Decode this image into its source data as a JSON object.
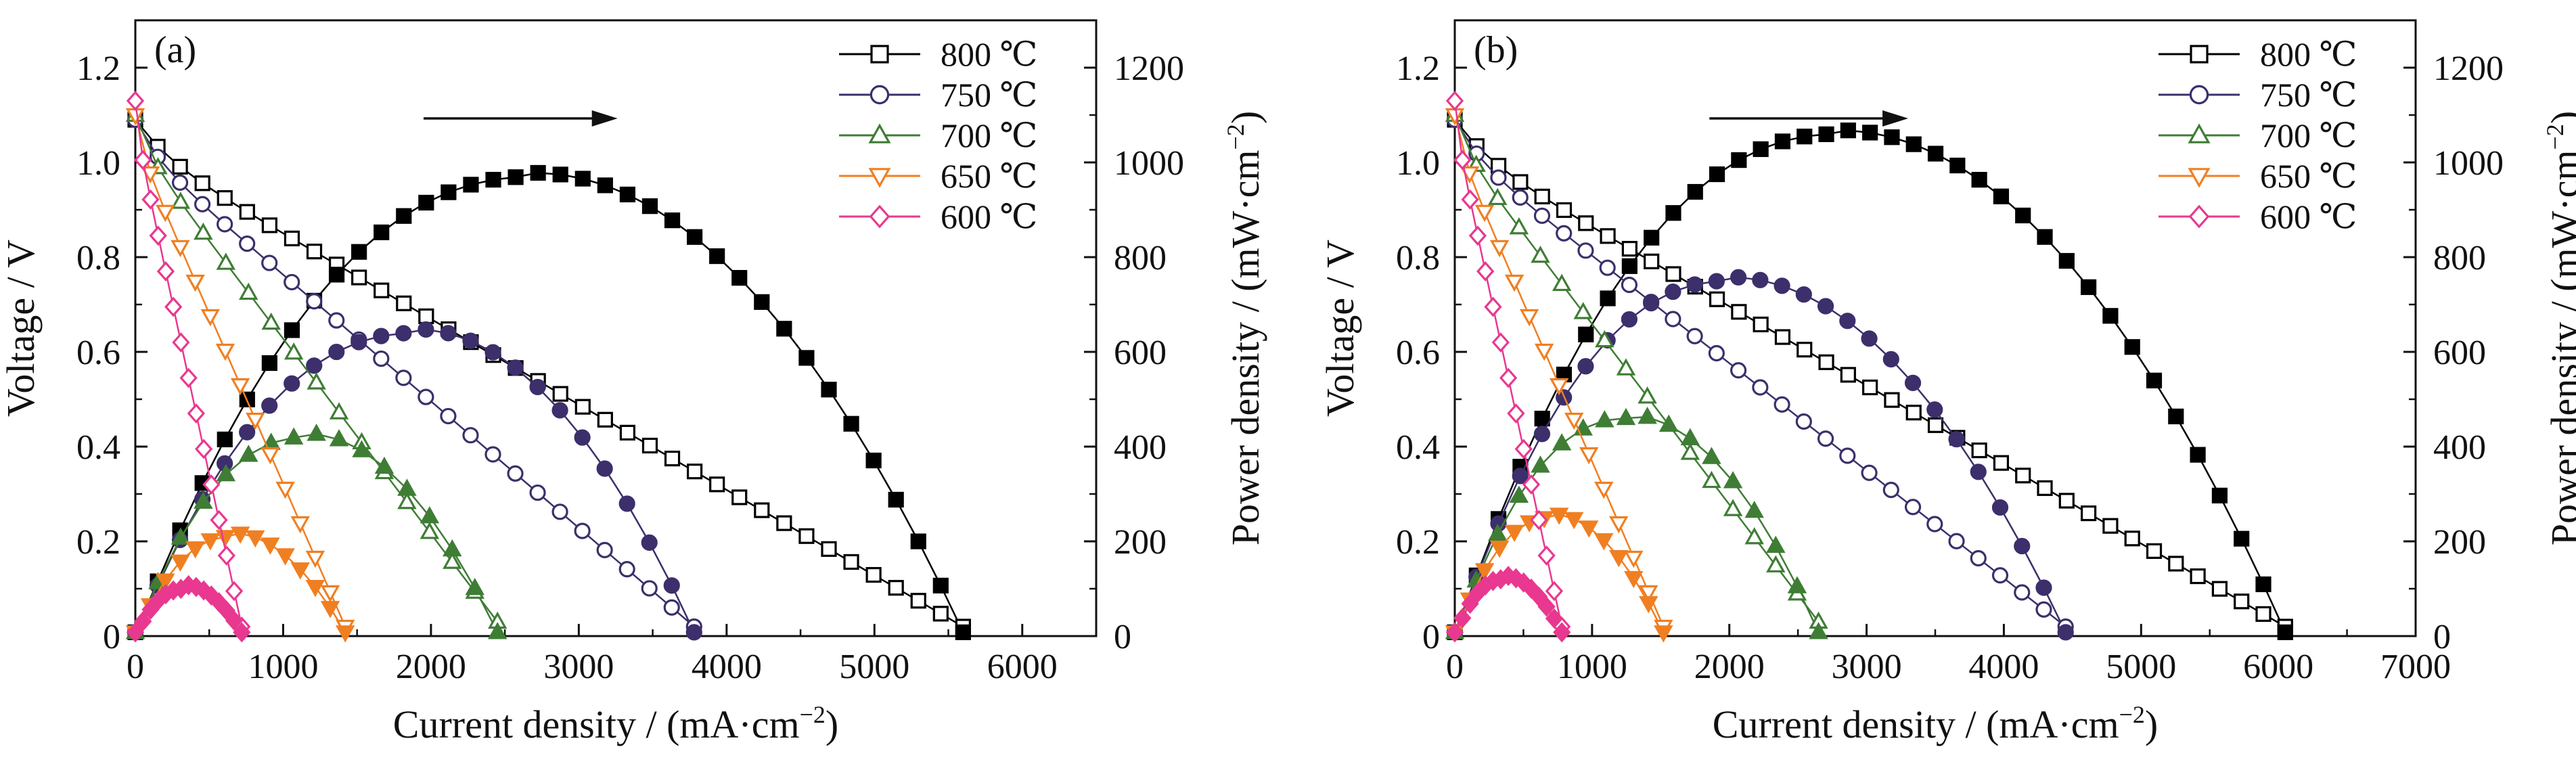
{
  "charts": [
    {
      "tag": "(a)",
      "xlabel": "Current density / (mA·cm",
      "ylabel_left": "Voltage / V",
      "ylabel_right": "Power density / (mW·cm",
      "unit_exponent": "−2",
      "unit_close": ")",
      "xticks": [
        "0",
        "1000",
        "2000",
        "3000",
        "4000",
        "5000",
        "6000"
      ],
      "yticks_left": [
        "0",
        "0.2",
        "0.4",
        "0.6",
        "0.8",
        "1.0",
        "1.2"
      ],
      "yticks_right": [
        "0",
        "200",
        "400",
        "600",
        "800",
        "1000",
        "1200"
      ],
      "legend": [
        "800 ℃",
        "750 ℃",
        "700 ℃",
        "650 ℃",
        "600 ℃"
      ],
      "annotation": "arrow pointing right"
    },
    {
      "tag": "(b)",
      "xlabel": "Current density / (mA·cm",
      "ylabel_left": "Voltage / V",
      "ylabel_right": "Power density / (mW·cm",
      "unit_exponent": "−2",
      "unit_close": ")",
      "xticks": [
        "0",
        "1000",
        "2000",
        "3000",
        "4000",
        "5000",
        "6000",
        "7000"
      ],
      "yticks_left": [
        "0",
        "0.2",
        "0.4",
        "0.6",
        "0.8",
        "1.0",
        "1.2"
      ],
      "yticks_right": [
        "0",
        "200",
        "400",
        "600",
        "800",
        "1000",
        "1200"
      ],
      "legend": [
        "800 ℃",
        "750 ℃",
        "700 ℃",
        "650 ℃",
        "600 ℃"
      ],
      "annotation": "arrow pointing right"
    }
  ],
  "chart_data": [
    {
      "type": "line",
      "xlim": [
        0,
        6500
      ],
      "ylim_left": [
        0,
        1.3
      ],
      "ylim_right": [
        0,
        1300
      ],
      "series": [
        {
          "name": "800 ℃",
          "color": "#000000",
          "marker": "square",
          "ocv": 1.09,
          "voc_end": [
            5600,
            0.02
          ],
          "peak_power": [
            2700,
            970
          ]
        },
        {
          "name": "750 ℃",
          "color": "#3c2f6b",
          "marker": "circle",
          "ocv": 1.09,
          "voc_end": [
            3780,
            0.02
          ],
          "peak_power": [
            1900,
            640
          ]
        },
        {
          "name": "700 ℃",
          "color": "#3f7d35",
          "marker": "triangle-up",
          "ocv": 1.1,
          "voc_end": [
            2450,
            0.03
          ],
          "peak_power": [
            1150,
            420
          ]
        },
        {
          "name": "650 ℃",
          "color": "#f07f22",
          "marker": "triangle-down",
          "ocv": 1.1,
          "voc_end": [
            1420,
            0.02
          ],
          "peak_power": [
            650,
            210
          ]
        },
        {
          "name": "600 ℃",
          "color": "#e8388f",
          "marker": "diamond",
          "ocv": 1.13,
          "voc_end": [
            720,
            0.02
          ],
          "peak_power": [
            330,
            100
          ]
        }
      ]
    },
    {
      "type": "line",
      "xlim": [
        0,
        7000
      ],
      "ylim_left": [
        0,
        1.3
      ],
      "ylim_right": [
        0,
        1300
      ],
      "series": [
        {
          "name": "800 ℃",
          "color": "#000000",
          "marker": "square",
          "ocv": 1.09,
          "voc_end": [
            6050,
            0.02
          ],
          "peak_power": [
            2800,
            1060
          ]
        },
        {
          "name": "750 ℃",
          "color": "#3c2f6b",
          "marker": "circle",
          "ocv": 1.09,
          "voc_end": [
            4450,
            0.02
          ],
          "peak_power": [
            2000,
            750
          ]
        },
        {
          "name": "700 ℃",
          "color": "#3f7d35",
          "marker": "triangle-up",
          "ocv": 1.1,
          "voc_end": [
            2650,
            0.03
          ],
          "peak_power": [
            1250,
            460
          ]
        },
        {
          "name": "650 ℃",
          "color": "#f07f22",
          "marker": "triangle-down",
          "ocv": 1.1,
          "voc_end": [
            1520,
            0.02
          ],
          "peak_power": [
            700,
            250
          ]
        },
        {
          "name": "600 ℃",
          "color": "#e8388f",
          "marker": "diamond",
          "ocv": 1.13,
          "voc_end": [
            780,
            0.02
          ],
          "peak_power": [
            350,
            120
          ]
        }
      ]
    }
  ]
}
